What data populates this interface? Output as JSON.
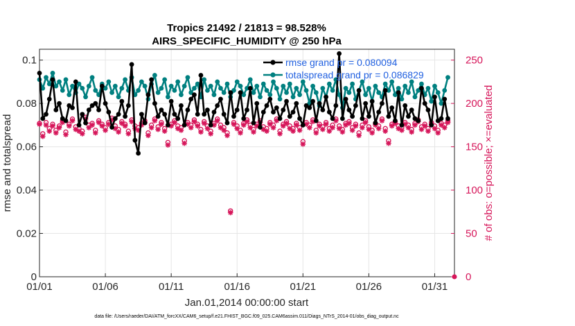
{
  "colors": {
    "rmse": "#000000",
    "spread": "#008080",
    "obs": "#d6165a",
    "legend_text": "#1f5fe0",
    "grid": "#e6e6e6"
  },
  "chart_data": {
    "type": "line",
    "title": "Tropics 21492 / 21813 = 98.528%",
    "subtitle": "AIRS_SPECIFIC_HUMIDITY @ 250 hPa",
    "xlabel": "Jan.01,2014 00:00:00 start",
    "ylabel": "rmse and totalspread",
    "ylabel_right": "# of obs: o=possible; ×=evaluated",
    "xlim": [
      0,
      31.5
    ],
    "ylim": [
      0,
      0.105
    ],
    "ylim_right": [
      0,
      262.5
    ],
    "x_ticks": [
      0,
      5,
      10,
      15,
      20,
      25,
      30
    ],
    "x_tick_labels": [
      "01/01",
      "01/06",
      "01/11",
      "01/16",
      "01/21",
      "01/26",
      "01/31"
    ],
    "y_ticks": [
      0,
      0.02,
      0.04,
      0.06,
      0.08,
      0.1
    ],
    "y_tick_labels": [
      "0",
      "0.02",
      "0.04",
      "0.06",
      "0.08",
      "0.1"
    ],
    "y_ticks_right": [
      0,
      50,
      100,
      150,
      200,
      250
    ],
    "y_tick_labels_right": [
      "0",
      "50",
      "100",
      "150",
      "200",
      "250"
    ],
    "grid": true,
    "legend_position": "top-right",
    "series": [
      {
        "name": "rmse grand pr = 0.080094",
        "axis": "left",
        "marker": "filled-circle",
        "x": [
          0.0,
          0.25,
          0.5,
          0.75,
          1.0,
          1.25,
          1.5,
          1.75,
          2.0,
          2.25,
          2.5,
          2.75,
          3.0,
          3.25,
          3.5,
          3.75,
          4.0,
          4.25,
          4.5,
          4.75,
          5.0,
          5.25,
          5.5,
          5.75,
          6.0,
          6.25,
          6.5,
          6.75,
          7.0,
          7.25,
          7.5,
          7.75,
          8.0,
          8.25,
          8.5,
          8.75,
          9.0,
          9.25,
          9.5,
          9.75,
          10.0,
          10.25,
          10.5,
          10.75,
          11.0,
          11.25,
          11.5,
          11.75,
          12.0,
          12.25,
          12.5,
          12.75,
          13.0,
          13.25,
          13.5,
          13.75,
          14.0,
          14.25,
          14.5,
          14.75,
          15.0,
          15.25,
          15.5,
          15.75,
          16.0,
          16.25,
          16.5,
          16.75,
          17.0,
          17.25,
          17.5,
          17.75,
          18.0,
          18.25,
          18.5,
          18.75,
          19.0,
          19.25,
          19.5,
          19.75,
          20.0,
          20.25,
          20.5,
          20.75,
          21.0,
          21.25,
          21.5,
          21.75,
          22.0,
          22.25,
          22.5,
          22.75,
          23.0,
          23.25,
          23.5,
          23.75,
          24.0,
          24.25,
          24.5,
          24.75,
          25.0,
          25.25,
          25.5,
          25.75,
          26.0,
          26.25,
          26.5,
          26.75,
          27.0,
          27.25,
          27.5,
          27.75,
          28.0,
          28.25,
          28.5,
          28.75,
          29.0,
          29.25,
          29.5,
          29.75,
          30.0,
          30.25,
          30.5,
          30.75,
          31.0
        ],
        "values": [
          0.094,
          0.073,
          0.075,
          0.082,
          0.091,
          0.077,
          0.08,
          0.073,
          0.072,
          0.079,
          0.078,
          0.09,
          0.07,
          0.075,
          0.071,
          0.077,
          0.079,
          0.08,
          0.077,
          0.088,
          0.08,
          0.076,
          0.069,
          0.073,
          0.075,
          0.081,
          0.074,
          0.079,
          0.098,
          0.063,
          0.057,
          0.075,
          0.071,
          0.084,
          0.091,
          0.08,
          0.074,
          0.077,
          0.075,
          0.07,
          0.081,
          0.075,
          0.073,
          0.079,
          0.07,
          0.077,
          0.082,
          0.084,
          0.075,
          0.093,
          0.075,
          0.077,
          0.07,
          0.076,
          0.079,
          0.082,
          0.075,
          0.071,
          0.085,
          0.074,
          0.077,
          0.085,
          0.073,
          0.077,
          0.087,
          0.071,
          0.08,
          0.069,
          0.076,
          0.079,
          0.082,
          0.076,
          0.078,
          0.073,
          0.077,
          0.081,
          0.074,
          0.076,
          0.08,
          0.073,
          0.07,
          0.079,
          0.078,
          0.081,
          0.072,
          0.08,
          0.077,
          0.083,
          0.076,
          0.073,
          0.079,
          0.103,
          0.073,
          0.082,
          0.077,
          0.074,
          0.079,
          0.086,
          0.073,
          0.08,
          0.074,
          0.081,
          0.071,
          0.076,
          0.08,
          0.086,
          0.074,
          0.078,
          0.072,
          0.085,
          0.07,
          0.079,
          0.074,
          0.077,
          0.073,
          0.072,
          0.087,
          0.08,
          0.077,
          0.07,
          0.083,
          0.072,
          0.073,
          0.082,
          0.073
        ]
      },
      {
        "name": "totalspread grand pr = 0.086829",
        "axis": "left",
        "marker": "filled-circle",
        "x": [
          0.0,
          0.25,
          0.5,
          0.75,
          1.0,
          1.25,
          1.5,
          1.75,
          2.0,
          2.25,
          2.5,
          2.75,
          3.0,
          3.25,
          3.5,
          3.75,
          4.0,
          4.25,
          4.5,
          4.75,
          5.0,
          5.25,
          5.5,
          5.75,
          6.0,
          6.25,
          6.5,
          6.75,
          7.0,
          7.25,
          7.5,
          7.75,
          8.0,
          8.25,
          8.5,
          8.75,
          9.0,
          9.25,
          9.5,
          9.75,
          10.0,
          10.25,
          10.5,
          10.75,
          11.0,
          11.25,
          11.5,
          11.75,
          12.0,
          12.25,
          12.5,
          12.75,
          13.0,
          13.25,
          13.5,
          13.75,
          14.0,
          14.25,
          14.5,
          14.75,
          15.0,
          15.25,
          15.5,
          15.75,
          16.0,
          16.25,
          16.5,
          16.75,
          17.0,
          17.25,
          17.5,
          17.75,
          18.0,
          18.25,
          18.5,
          18.75,
          19.0,
          19.25,
          19.5,
          19.75,
          20.0,
          20.25,
          20.5,
          20.75,
          21.0,
          21.25,
          21.5,
          21.75,
          22.0,
          22.25,
          22.5,
          22.75,
          23.0,
          23.25,
          23.5,
          23.75,
          24.0,
          24.25,
          24.5,
          24.75,
          25.0,
          25.25,
          25.5,
          25.75,
          26.0,
          26.25,
          26.5,
          26.75,
          27.0,
          27.25,
          27.5,
          27.75,
          28.0,
          28.25,
          28.5,
          28.75,
          29.0,
          29.25,
          29.5,
          29.75,
          30.0,
          30.25,
          30.5,
          30.75,
          31.0
        ],
        "values": [
          0.091,
          0.087,
          0.092,
          0.089,
          0.094,
          0.088,
          0.09,
          0.086,
          0.091,
          0.084,
          0.088,
          0.085,
          0.089,
          0.087,
          0.083,
          0.088,
          0.092,
          0.086,
          0.084,
          0.089,
          0.087,
          0.09,
          0.085,
          0.088,
          0.083,
          0.087,
          0.091,
          0.086,
          0.092,
          0.084,
          0.086,
          0.09,
          0.088,
          0.082,
          0.089,
          0.093,
          0.085,
          0.087,
          0.091,
          0.083,
          0.088,
          0.086,
          0.09,
          0.084,
          0.088,
          0.092,
          0.085,
          0.087,
          0.089,
          0.083,
          0.091,
          0.086,
          0.088,
          0.084,
          0.09,
          0.087,
          0.085,
          0.089,
          0.083,
          0.086,
          0.09,
          0.088,
          0.084,
          0.087,
          0.091,
          0.085,
          0.088,
          0.083,
          0.089,
          0.086,
          0.084,
          0.09,
          0.087,
          0.082,
          0.088,
          0.085,
          0.089,
          0.083,
          0.087,
          0.084,
          0.09,
          0.086,
          0.08,
          0.088,
          0.085,
          0.079,
          0.087,
          0.083,
          0.089,
          0.086,
          0.091,
          0.084,
          0.078,
          0.087,
          0.085,
          0.089,
          0.082,
          0.086,
          0.09,
          0.084,
          0.087,
          0.081,
          0.088,
          0.085,
          0.083,
          0.089,
          0.086,
          0.09,
          0.084,
          0.087,
          0.082,
          0.088,
          0.085,
          0.09,
          0.083,
          0.086,
          0.089,
          0.084,
          0.087,
          0.081,
          0.088,
          0.085,
          0.08,
          0.086,
          0.092
        ]
      },
      {
        "name": "possible",
        "axis": "right",
        "marker": "open-circle",
        "x": [
          0.0,
          0.25,
          0.5,
          0.75,
          1.0,
          1.25,
          1.5,
          1.75,
          2.0,
          2.25,
          2.5,
          2.75,
          3.0,
          3.25,
          3.5,
          3.75,
          4.0,
          4.25,
          4.5,
          4.75,
          5.0,
          5.25,
          5.5,
          5.75,
          6.0,
          6.25,
          6.5,
          6.75,
          7.0,
          7.25,
          7.5,
          7.75,
          8.0,
          8.25,
          8.5,
          8.75,
          9.0,
          9.25,
          9.5,
          9.75,
          10.0,
          10.25,
          10.5,
          10.75,
          11.0,
          11.25,
          11.5,
          11.75,
          12.0,
          12.25,
          12.5,
          12.75,
          13.0,
          13.25,
          13.5,
          13.75,
          14.0,
          14.25,
          14.5,
          14.75,
          15.0,
          15.25,
          15.5,
          15.75,
          16.0,
          16.25,
          16.5,
          16.75,
          17.0,
          17.25,
          17.5,
          17.75,
          18.0,
          18.25,
          18.5,
          18.75,
          19.0,
          19.25,
          19.5,
          19.75,
          20.0,
          20.25,
          20.5,
          20.75,
          21.0,
          21.25,
          21.5,
          21.75,
          22.0,
          22.25,
          22.5,
          22.75,
          23.0,
          23.25,
          23.5,
          23.75,
          24.0,
          24.25,
          24.5,
          24.75,
          25.0,
          25.25,
          25.5,
          25.75,
          26.0,
          26.25,
          26.5,
          26.75,
          27.0,
          27.25,
          27.5,
          27.75,
          28.0,
          28.25,
          28.5,
          28.75,
          29.0,
          29.25,
          29.5,
          29.75,
          30.0,
          30.25,
          30.5,
          30.75,
          31.0
        ],
        "values": [
          177,
          165,
          178,
          171,
          176,
          169,
          174,
          180,
          167,
          176,
          182,
          173,
          171,
          168,
          184,
          175,
          177,
          169,
          180,
          176,
          172,
          178,
          183,
          174,
          170,
          179,
          176,
          168,
          181,
          174,
          172,
          177,
          180,
          166,
          175,
          182,
          173,
          178,
          171,
          155,
          176,
          180,
          174,
          172,
          157,
          178,
          175,
          181,
          176,
          170,
          179,
          174,
          168,
          177,
          182,
          175,
          172,
          166,
          76,
          178,
          174,
          169,
          177,
          181,
          175,
          170,
          176,
          180,
          173,
          171,
          178,
          175,
          182,
          168,
          176,
          179,
          174,
          171,
          177,
          172,
          156,
          178,
          175,
          181,
          169,
          176,
          173,
          178,
          171,
          175,
          182,
          174,
          170,
          177,
          179,
          172,
          176,
          166,
          175,
          180,
          173,
          169,
          177,
          174,
          182,
          171,
          157,
          176,
          179,
          174,
          172,
          178,
          175,
          170,
          177,
          181,
          173,
          176,
          171,
          178,
          174,
          169,
          177,
          175,
          180
        ]
      },
      {
        "name": "evaluated",
        "axis": "right",
        "marker": "asterisk",
        "x": [
          0.0,
          0.25,
          0.5,
          0.75,
          1.0,
          1.25,
          1.5,
          1.75,
          2.0,
          2.25,
          2.5,
          2.75,
          3.0,
          3.25,
          3.5,
          3.75,
          4.0,
          4.25,
          4.5,
          4.75,
          5.0,
          5.25,
          5.5,
          5.75,
          6.0,
          6.25,
          6.5,
          6.75,
          7.0,
          7.25,
          7.5,
          7.75,
          8.0,
          8.25,
          8.5,
          8.75,
          9.0,
          9.25,
          9.5,
          9.75,
          10.0,
          10.25,
          10.5,
          10.75,
          11.0,
          11.25,
          11.5,
          11.75,
          12.0,
          12.25,
          12.5,
          12.75,
          13.0,
          13.25,
          13.5,
          13.75,
          14.0,
          14.25,
          14.5,
          14.75,
          15.0,
          15.25,
          15.5,
          15.75,
          16.0,
          16.25,
          16.5,
          16.75,
          17.0,
          17.25,
          17.5,
          17.75,
          18.0,
          18.25,
          18.5,
          18.75,
          19.0,
          19.25,
          19.5,
          19.75,
          20.0,
          20.25,
          20.5,
          20.75,
          21.0,
          21.25,
          21.5,
          21.75,
          22.0,
          22.25,
          22.5,
          22.75,
          23.0,
          23.25,
          23.5,
          23.75,
          24.0,
          24.25,
          24.5,
          24.75,
          25.0,
          25.25,
          25.5,
          25.75,
          26.0,
          26.25,
          26.5,
          26.75,
          27.0,
          27.25,
          27.5,
          27.75,
          28.0,
          28.25,
          28.5,
          28.75,
          29.0,
          29.25,
          29.5,
          29.75,
          30.0,
          30.25,
          30.5,
          30.75,
          31.0
        ],
        "values": [
          176,
          162,
          175,
          168,
          174,
          166,
          172,
          178,
          164,
          174,
          180,
          170,
          168,
          165,
          182,
          172,
          175,
          166,
          178,
          174,
          169,
          176,
          181,
          171,
          167,
          177,
          174,
          165,
          179,
          171,
          169,
          175,
          178,
          163,
          172,
          180,
          170,
          176,
          168,
          152,
          174,
          178,
          171,
          169,
          154,
          176,
          172,
          179,
          174,
          167,
          177,
          171,
          165,
          175,
          180,
          172,
          169,
          163,
          74,
          176,
          171,
          166,
          175,
          179,
          172,
          167,
          174,
          178,
          170,
          168,
          176,
          172,
          180,
          165,
          174,
          177,
          171,
          168,
          175,
          169,
          153,
          176,
          172,
          179,
          166,
          174,
          170,
          176,
          168,
          172,
          180,
          171,
          167,
          175,
          177,
          169,
          174,
          163,
          172,
          178,
          170,
          166,
          175,
          171,
          180,
          168,
          154,
          174,
          177,
          171,
          169,
          176,
          172,
          167,
          175,
          179,
          170,
          174,
          168,
          176,
          171,
          166,
          175,
          172,
          178
        ]
      }
    ],
    "footer": "data file: /Users/raeder/DAI/ATM_forcXX/CAM6_setup/f.e21.FHIST_BGC.f09_025.CAM6assim.011/Diags_NTrS_2014-01/obs_diag_output.nc"
  }
}
